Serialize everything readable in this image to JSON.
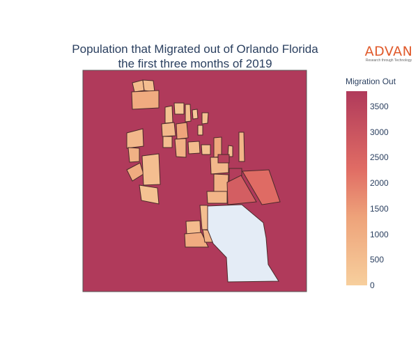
{
  "title": {
    "line1": "Population that Migrated out of Orlando Florida",
    "line2": "the first three months of 2019"
  },
  "logo": {
    "word": "ADVAN",
    "tagline": "Research through Technology"
  },
  "colorbar": {
    "title": "Migration Out",
    "ticks": [
      "3500",
      "3000",
      "2500",
      "2000",
      "1500",
      "1000",
      "500",
      "0"
    ],
    "tick_values": [
      3500,
      3000,
      2500,
      2000,
      1500,
      1000,
      500,
      0
    ],
    "max": 3800
  },
  "colors": {
    "background_region": "#b03a5b",
    "no_data": "#e4ecf6",
    "scale_low": "#f7cf9d",
    "scale_mid": "#e8785f",
    "scale_high": "#b03a5b",
    "border": "#4a2a2a"
  },
  "chart_data": {
    "type": "choropleth",
    "value_field": "Migration Out",
    "range": [
      0,
      3800
    ],
    "regions": [
      {
        "id": "surrounding-area",
        "value": 3800
      },
      {
        "id": "nw-a",
        "value": 600
      },
      {
        "id": "nw-b",
        "value": 500
      },
      {
        "id": "nw-c",
        "value": 1100
      },
      {
        "id": "north-1",
        "value": 400
      },
      {
        "id": "north-2",
        "value": 300
      },
      {
        "id": "north-3",
        "value": 500
      },
      {
        "id": "north-4",
        "value": 200
      },
      {
        "id": "north-5",
        "value": 400
      },
      {
        "id": "center-1",
        "value": 700
      },
      {
        "id": "center-2",
        "value": 1300
      },
      {
        "id": "center-3",
        "value": 300
      },
      {
        "id": "center-4",
        "value": 500
      },
      {
        "id": "center-5",
        "value": 900
      },
      {
        "id": "center-6",
        "value": 600
      },
      {
        "id": "center-7",
        "value": 400
      },
      {
        "id": "center-8",
        "value": 1200
      },
      {
        "id": "center-9",
        "value": 500
      },
      {
        "id": "center-10",
        "value": 800
      },
      {
        "id": "west-1",
        "value": 700
      },
      {
        "id": "west-2",
        "value": 900
      },
      {
        "id": "west-3",
        "value": 1100
      },
      {
        "id": "west-4",
        "value": 500
      },
      {
        "id": "west-5",
        "value": 400
      },
      {
        "id": "east-1",
        "value": 700
      },
      {
        "id": "east-2",
        "value": 900
      },
      {
        "id": "east-3",
        "value": 3600
      },
      {
        "id": "east-4",
        "value": 3700
      },
      {
        "id": "east-5",
        "value": 2700
      },
      {
        "id": "east-6",
        "value": 2300
      },
      {
        "id": "south-1",
        "value": 800
      },
      {
        "id": "south-2",
        "value": 500
      },
      {
        "id": "south-3",
        "value": 900
      },
      {
        "id": "south-4",
        "value": 600
      },
      {
        "id": "south-5",
        "value": 1100
      },
      {
        "id": "southwest-1",
        "value": 900
      },
      {
        "id": "southwest-2",
        "value": 800
      },
      {
        "id": "south-large",
        "value": null
      }
    ]
  }
}
